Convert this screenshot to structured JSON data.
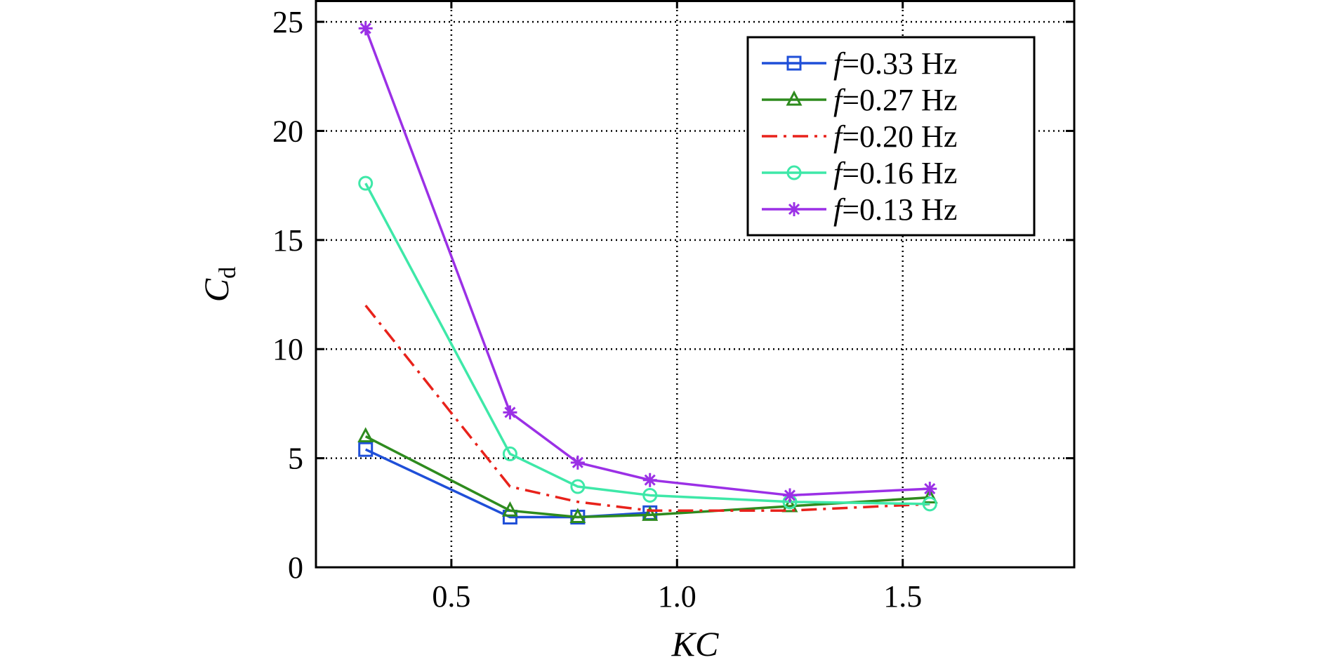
{
  "chart_data": {
    "type": "line",
    "title": "",
    "xlabel": "KC",
    "ylabel": {
      "main": "C",
      "subscript": "d"
    },
    "xlim": [
      0.2,
      1.88
    ],
    "ylim": [
      0,
      26
    ],
    "xticks": [
      0.5,
      1.0,
      1.5
    ],
    "xtick_labels": [
      "0.5",
      "1.0",
      "1.5"
    ],
    "yticks": [
      0,
      5,
      10,
      15,
      20,
      25
    ],
    "ytick_labels": [
      "0",
      "5",
      "10",
      "15",
      "20",
      "25"
    ],
    "grid": true,
    "legend_position": "top-right",
    "series": [
      {
        "name": "f=0.33 Hz",
        "prefix": "f",
        "suffix": "=0.33 Hz",
        "color": "#1f4fd8",
        "marker": "square",
        "dash": "solid",
        "x": [
          0.31,
          0.63,
          0.78,
          0.94
        ],
        "y": [
          5.4,
          2.3,
          2.3,
          2.5
        ]
      },
      {
        "name": "f=0.27 Hz",
        "prefix": "f",
        "suffix": "=0.27 Hz",
        "color": "#2e8b1e",
        "marker": "triangle",
        "dash": "solid",
        "x": [
          0.31,
          0.63,
          0.78,
          0.94,
          1.25,
          1.56
        ],
        "y": [
          6.0,
          2.6,
          2.3,
          2.4,
          2.8,
          3.2
        ]
      },
      {
        "name": "f=0.20 Hz",
        "prefix": "f",
        "suffix": "=0.20 Hz",
        "color": "#e8221b",
        "marker": "none",
        "dash": "dashdot",
        "x": [
          0.31,
          0.63,
          0.78,
          0.94,
          1.25,
          1.56
        ],
        "y": [
          12.0,
          3.7,
          3.0,
          2.6,
          2.6,
          2.9
        ]
      },
      {
        "name": "f=0.16 Hz",
        "prefix": "f",
        "suffix": "=0.16 Hz",
        "color": "#3ee8a8",
        "marker": "circle",
        "dash": "solid",
        "x": [
          0.31,
          0.63,
          0.78,
          0.94,
          1.25,
          1.56
        ],
        "y": [
          17.6,
          5.2,
          3.7,
          3.3,
          3.0,
          2.9
        ]
      },
      {
        "name": "f=0.13 Hz",
        "prefix": "f",
        "suffix": "=0.13 Hz",
        "color": "#9b30e6",
        "marker": "plus",
        "dash": "solid",
        "x": [
          0.31,
          0.63,
          0.78,
          0.94,
          1.25,
          1.56
        ],
        "y": [
          24.7,
          7.1,
          4.8,
          4.0,
          3.3,
          3.6
        ]
      }
    ]
  }
}
